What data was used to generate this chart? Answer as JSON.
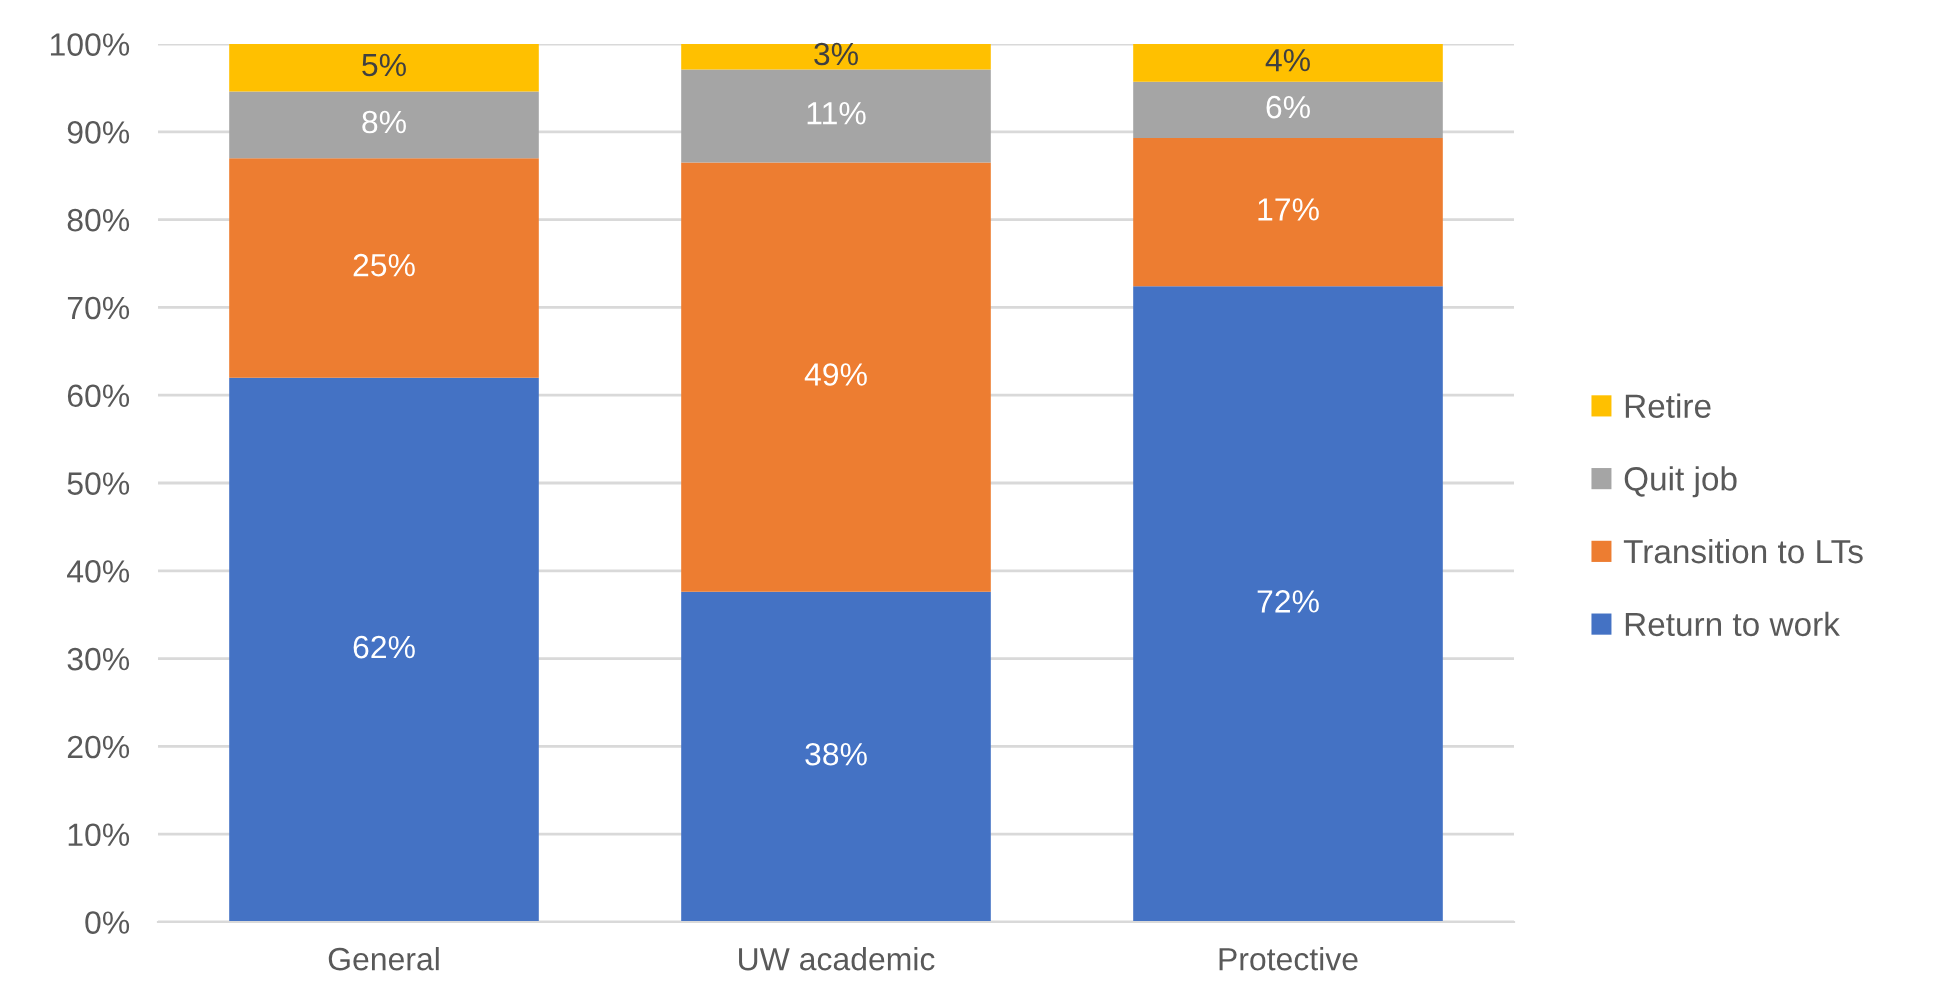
{
  "chart_data": {
    "type": "bar",
    "stacked": true,
    "categories": [
      "General",
      "UW academic",
      "Protective"
    ],
    "series": [
      {
        "name": "Return to work",
        "color": "#4472c4",
        "values": [
          62,
          37.6,
          72.4
        ],
        "value_labels": [
          "62%",
          "38%",
          "72%"
        ]
      },
      {
        "name": "Transition to LTs",
        "color": "#ed7d31",
        "values": [
          25,
          48.9,
          16.9
        ],
        "value_labels": [
          "25%",
          "49%",
          "17%"
        ]
      },
      {
        "name": "Quit job",
        "color": "#a5a5a5",
        "values": [
          7.6,
          10.6,
          6.4
        ],
        "value_labels": [
          "8%",
          "11%",
          "6%"
        ]
      },
      {
        "name": "Retire",
        "color": "#ffc000",
        "values": [
          5.4,
          2.9,
          4.3
        ],
        "value_labels": [
          "5%",
          "3%",
          "4%"
        ]
      }
    ],
    "ylim": [
      0,
      100
    ],
    "yticks": [
      {
        "value": 0,
        "label": "0%"
      },
      {
        "value": 10,
        "label": "10%"
      },
      {
        "value": 20,
        "label": "20%"
      },
      {
        "value": 30,
        "label": "30%"
      },
      {
        "value": 40,
        "label": "40%"
      },
      {
        "value": 50,
        "label": "50%"
      },
      {
        "value": 60,
        "label": "60%"
      },
      {
        "value": 70,
        "label": "70%"
      },
      {
        "value": 80,
        "label": "80%"
      },
      {
        "value": 90,
        "label": "90%"
      },
      {
        "value": 100,
        "label": "100%"
      }
    ],
    "grid": "y",
    "legend": "right"
  }
}
